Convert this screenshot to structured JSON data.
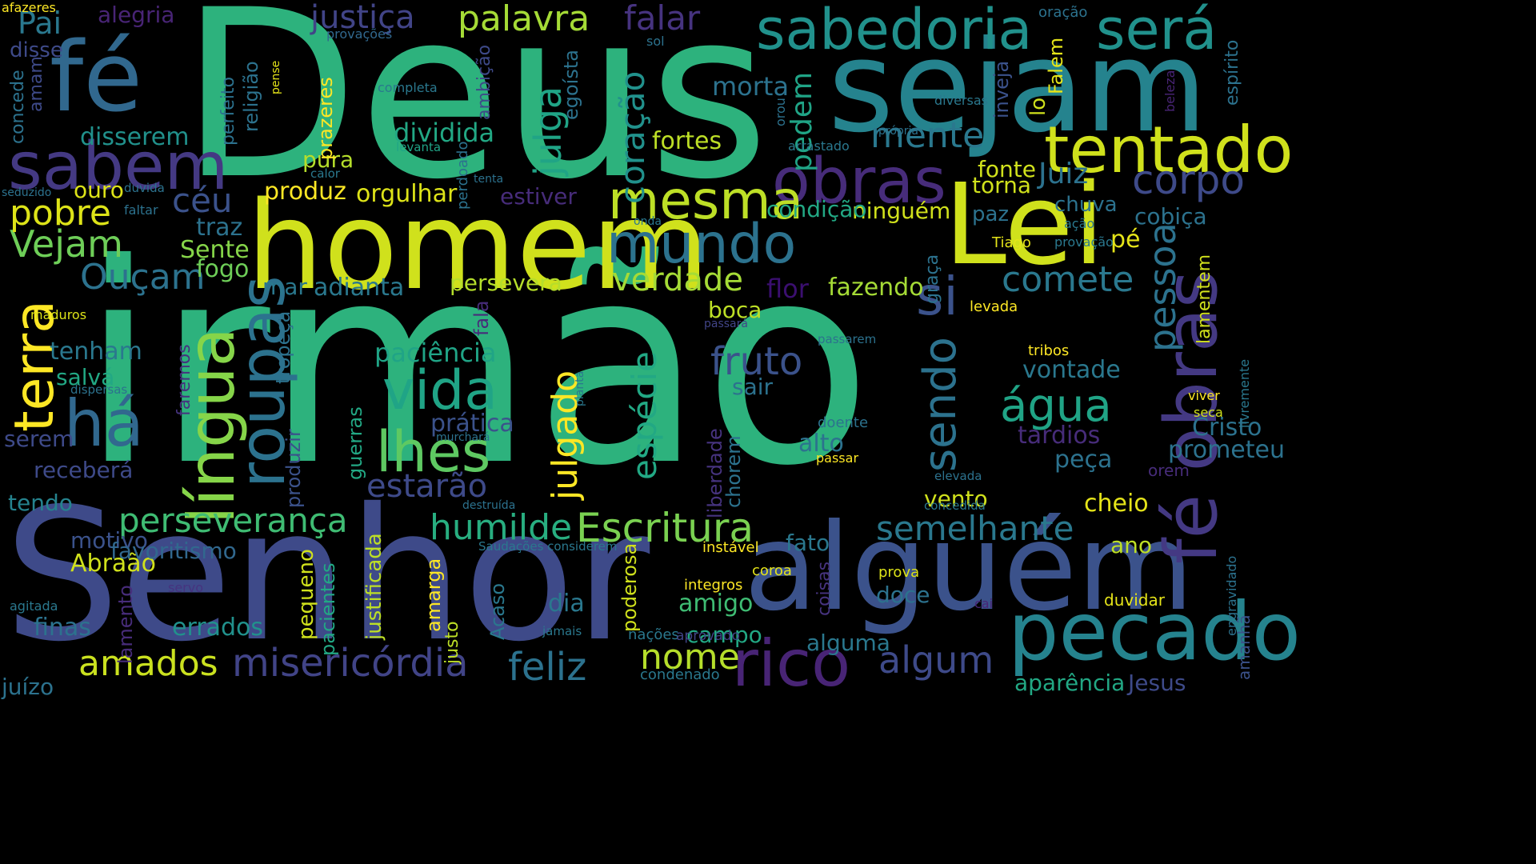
{
  "words": [
    {
      "text": "irmão",
      "color": "#2db27d"
    },
    {
      "text": "Deus",
      "color": "#2db27d"
    },
    {
      "text": "Senhor",
      "color": "#3e4a89"
    },
    {
      "text": "homem",
      "color": "#d0e11c"
    },
    {
      "text": "sejam",
      "color": "#25838e"
    },
    {
      "text": "alguém",
      "color": "#3b528b"
    },
    {
      "text": "fé",
      "color": "#31688e"
    },
    {
      "text": "Lei",
      "color": "#d0e11c"
    },
    {
      "text": "pecado",
      "color": "#25838e"
    },
    {
      "text": "obras",
      "color": "#472c7a"
    },
    {
      "text": "fé obras",
      "color": "#443983"
    },
    {
      "text": "sabedoria",
      "color": "#21918c"
    },
    {
      "text": "será",
      "color": "#21918c"
    },
    {
      "text": "tentado",
      "color": "#d0e11c"
    },
    {
      "text": "sabem",
      "color": "#443983"
    },
    {
      "text": "mesma",
      "color": "#bddf26"
    },
    {
      "text": "mundo",
      "color": "#2c728e"
    },
    {
      "text": "língua",
      "color": "#86d549"
    },
    {
      "text": "roupas",
      "color": "#2c728e"
    },
    {
      "text": "terra",
      "color": "#fde725"
    },
    {
      "text": "há",
      "color": "#31688e"
    },
    {
      "text": "vida",
      "color": "#20a486"
    },
    {
      "text": "lhes",
      "color": "#5ec962"
    },
    {
      "text": "rico",
      "color": "#482475"
    },
    {
      "text": "misericórdia",
      "color": "#414487"
    },
    {
      "text": "feliz",
      "color": "#2c728e"
    },
    {
      "text": "nome",
      "color": "#b5de2b"
    },
    {
      "text": "algum",
      "color": "#3e4a89"
    },
    {
      "text": "semelhante",
      "color": "#2a788e"
    },
    {
      "text": "humilde",
      "color": "#28ae80"
    },
    {
      "text": "Escritura",
      "color": "#7ad151"
    },
    {
      "text": "perseverança",
      "color": "#3fbc73"
    },
    {
      "text": "estarão",
      "color": "#3e4a89"
    },
    {
      "text": "fruto",
      "color": "#3b528b"
    },
    {
      "text": "água",
      "color": "#20a486"
    },
    {
      "text": "sendo",
      "color": "#2c728e"
    },
    {
      "text": "si",
      "color": "#3b528b"
    },
    {
      "text": "pessoa",
      "color": "#2c728e"
    },
    {
      "text": "comete",
      "color": "#2a788e"
    },
    {
      "text": "verdade",
      "color": "#a5db36"
    },
    {
      "text": "palavra",
      "color": "#a5db36"
    },
    {
      "text": "justiça",
      "color": "#414487"
    },
    {
      "text": "falar",
      "color": "#46337f"
    },
    {
      "text": "julga",
      "color": "#20a486"
    },
    {
      "text": "coração",
      "color": "#21918c"
    },
    {
      "text": "julgado",
      "color": "#fde725"
    },
    {
      "text": "espécie",
      "color": "#22a884"
    },
    {
      "text": "amados",
      "color": "#cae11f"
    },
    {
      "text": "mente",
      "color": "#2a788e"
    },
    {
      "text": "pedem",
      "color": "#20a486"
    },
    {
      "text": "Juiz",
      "color": "#2c728e"
    },
    {
      "text": "corpo",
      "color": "#3e4a89"
    },
    {
      "text": "Vejam",
      "color": "#6ece58"
    },
    {
      "text": "pobre",
      "color": "#dde318"
    },
    {
      "text": "céu",
      "color": "#3b528b"
    },
    {
      "text": "Ouçam",
      "color": "#2c728e"
    },
    {
      "text": "Pai",
      "color": "#2a788e"
    },
    {
      "text": "disse",
      "color": "#3e4a89"
    },
    {
      "text": "alegria",
      "color": "#482475"
    },
    {
      "text": "disserem",
      "color": "#21918c"
    },
    {
      "text": "fortes",
      "color": "#bddf26"
    },
    {
      "text": "produz",
      "color": "#fde725"
    },
    {
      "text": "orgulhar",
      "color": "#dde318"
    },
    {
      "text": "pura",
      "color": "#b5de2b"
    },
    {
      "text": "ouro",
      "color": "#dde318"
    },
    {
      "text": "dividida",
      "color": "#22a884"
    },
    {
      "text": "morta",
      "color": "#2c728e"
    },
    {
      "text": "paciência",
      "color": "#20a486"
    },
    {
      "text": "persevera",
      "color": "#b5de2b"
    },
    {
      "text": "adianta",
      "color": "#2a788e"
    },
    {
      "text": "mar",
      "color": "#2a788e"
    },
    {
      "text": "fogo",
      "color": "#6ece58"
    },
    {
      "text": "Sente",
      "color": "#86d549"
    },
    {
      "text": "traz",
      "color": "#2c728e"
    },
    {
      "text": "fonte",
      "color": "#d0e11c"
    },
    {
      "text": "torna",
      "color": "#d0e11c"
    },
    {
      "text": "ninguém",
      "color": "#d0e11c"
    },
    {
      "text": "condição",
      "color": "#22a884"
    },
    {
      "text": "paz",
      "color": "#2c728e"
    },
    {
      "text": "chuva",
      "color": "#2c728e"
    },
    {
      "text": "cobiça",
      "color": "#2c728e"
    },
    {
      "text": "pé",
      "color": "#e5e419"
    },
    {
      "text": "fazendo",
      "color": "#a5db36"
    },
    {
      "text": "flor",
      "color": "#3b0f70"
    },
    {
      "text": "boca",
      "color": "#bddf26"
    },
    {
      "text": "sair",
      "color": "#2c728e"
    },
    {
      "text": "tenham",
      "color": "#2a788e"
    },
    {
      "text": "salvá",
      "color": "#22a884"
    },
    {
      "text": "serem",
      "color": "#3e4a89"
    },
    {
      "text": "receberá",
      "color": "#3e4a89"
    },
    {
      "text": "tendo",
      "color": "#25838e"
    },
    {
      "text": "Abraão",
      "color": "#d0e11c"
    },
    {
      "text": "motivo",
      "color": "#3b528b"
    },
    {
      "text": "favoritismo",
      "color": "#31688e"
    },
    {
      "text": "finas",
      "color": "#2c728e"
    },
    {
      "text": "errados",
      "color": "#21918c"
    },
    {
      "text": "juízo",
      "color": "#2c728e"
    },
    {
      "text": "prática",
      "color": "#3b528b"
    },
    {
      "text": "dia",
      "color": "#2a788e"
    },
    {
      "text": "amigo",
      "color": "#3fbc73"
    },
    {
      "text": "campo",
      "color": "#22a884"
    },
    {
      "text": "alto",
      "color": "#2c728e"
    },
    {
      "text": "vento",
      "color": "#d0e11c"
    },
    {
      "text": "cheio",
      "color": "#e5e419"
    },
    {
      "text": "ano",
      "color": "#bddf26"
    },
    {
      "text": "fato",
      "color": "#2a788e"
    },
    {
      "text": "alguma",
      "color": "#2a788e"
    },
    {
      "text": "doce",
      "color": "#2c728e"
    },
    {
      "text": "Cristo",
      "color": "#2c728e"
    },
    {
      "text": "prometeu",
      "color": "#2c728e"
    },
    {
      "text": "tardios",
      "color": "#472c7a"
    },
    {
      "text": "peça",
      "color": "#2c728e"
    },
    {
      "text": "vontade",
      "color": "#2a788e"
    },
    {
      "text": "aparência",
      "color": "#22a884"
    },
    {
      "text": "Jesus",
      "color": "#3e4a89"
    },
    {
      "text": "estiver",
      "color": "#472c7a"
    },
    {
      "text": "levada",
      "color": "#fde725"
    },
    {
      "text": "Tiago",
      "color": "#e5e419"
    },
    {
      "text": "tribos",
      "color": "#fde725"
    },
    {
      "text": "duvidar",
      "color": "#e5e419"
    },
    {
      "text": "coroa",
      "color": "#e5e419"
    },
    {
      "text": "prova",
      "color": "#dde318"
    },
    {
      "text": "integros",
      "color": "#fde725"
    },
    {
      "text": "instável",
      "color": "#fde725"
    },
    {
      "text": "nações",
      "color": "#2a788e"
    },
    {
      "text": "aprovado",
      "color": "#414487"
    },
    {
      "text": "condenado",
      "color": "#2a788e"
    },
    {
      "text": "doente",
      "color": "#2c728e"
    },
    {
      "text": "passar",
      "color": "#fde725"
    },
    {
      "text": "elevada",
      "color": "#2c728e"
    },
    {
      "text": "concedida",
      "color": "#2a788e"
    },
    {
      "text": "destruída",
      "color": "#2c728e"
    },
    {
      "text": "orem",
      "color": "#472c7a"
    },
    {
      "text": "viver",
      "color": "#fde725"
    },
    {
      "text": "seca",
      "color": "#d0e11c"
    },
    {
      "text": "cai",
      "color": "#482475"
    },
    {
      "text": "ação",
      "color": "#2a788e"
    },
    {
      "text": "provação",
      "color": "#2a788e"
    },
    {
      "text": "diversas",
      "color": "#2a788e"
    },
    {
      "text": "própria",
      "color": "#2c728e"
    },
    {
      "text": "arrastado",
      "color": "#2a788e"
    },
    {
      "text": "onda",
      "color": "#2a788e"
    },
    {
      "text": "tenta",
      "color": "#2c728e"
    },
    {
      "text": "completa",
      "color": "#2a788e"
    },
    {
      "text": "levanta",
      "color": "#20a486"
    },
    {
      "text": "calor",
      "color": "#2a788e"
    },
    {
      "text": "faltar",
      "color": "#2c728e"
    },
    {
      "text": "duvida",
      "color": "#2c728e"
    },
    {
      "text": "seduzido",
      "color": "#2c728e"
    },
    {
      "text": "maduros",
      "color": "#dde318"
    },
    {
      "text": "dispersas",
      "color": "#2c728e"
    },
    {
      "text": "agitada",
      "color": "#2a788e"
    },
    {
      "text": "servo",
      "color": "#46337f"
    },
    {
      "text": "Saudações considerem",
      "color": "#2a788e"
    },
    {
      "text": "murchará",
      "color": "#2c728e"
    },
    {
      "text": "passará",
      "color": "#414487"
    },
    {
      "text": "passarem",
      "color": "#2c728e"
    },
    {
      "text": "jamais",
      "color": "#2a788e"
    },
    {
      "text": "provações",
      "color": "#31688e"
    },
    {
      "text": "sol",
      "color": "#2c728e"
    },
    {
      "text": "oração",
      "color": "#2c728e"
    },
    {
      "text": "afazeres",
      "color": "#fde725"
    },
    {
      "text": "amam",
      "color": "#3e4a89"
    },
    {
      "text": "concede",
      "color": "#2c728e"
    },
    {
      "text": "perfeito",
      "color": "#2c728e"
    },
    {
      "text": "religião",
      "color": "#2c728e"
    },
    {
      "text": "pense",
      "color": "#e5e419"
    },
    {
      "text": "prazeres",
      "color": "#fde725"
    },
    {
      "text": "ambição",
      "color": "#3e4a89"
    },
    {
      "text": "egoísta",
      "color": "#2c728e"
    },
    {
      "text": "perdoado",
      "color": "#2c728e"
    },
    {
      "text": "inveja",
      "color": "#3b528b"
    },
    {
      "text": "lo",
      "color": "#d0e11c"
    },
    {
      "text": "Falem",
      "color": "#e5e419"
    },
    {
      "text": "espírito",
      "color": "#2c728e"
    },
    {
      "text": "beleza",
      "color": "#482475"
    },
    {
      "text": "orou",
      "color": "#2c728e"
    },
    {
      "text": "graça",
      "color": "#2c728e"
    },
    {
      "text": "fala",
      "color": "#472c7a"
    },
    {
      "text": "tropeça",
      "color": "#2c728e"
    },
    {
      "text": "faremos",
      "color": "#46337f"
    },
    {
      "text": "produzir",
      "color": "#3b528b"
    },
    {
      "text": "guerras",
      "color": "#22a884"
    },
    {
      "text": "justificada",
      "color": "#bddf26"
    },
    {
      "text": "pequeno",
      "color": "#d0e11c"
    },
    {
      "text": "pacientes",
      "color": "#22a884"
    },
    {
      "text": "amarga",
      "color": "#fde725"
    },
    {
      "text": "justo",
      "color": "#bddf26"
    },
    {
      "text": "Acaso",
      "color": "#2a788e"
    },
    {
      "text": "lamento",
      "color": "#472c7a"
    },
    {
      "text": "poderosa",
      "color": "#d0e11c"
    },
    {
      "text": "liberdade",
      "color": "#46337f"
    },
    {
      "text": "chorem",
      "color": "#2c728e"
    },
    {
      "text": "coisas",
      "color": "#46337f"
    },
    {
      "text": "planta",
      "color": "#2a788e"
    },
    {
      "text": "lamentem",
      "color": "#d0e11c"
    },
    {
      "text": "livremente",
      "color": "#2a788e"
    },
    {
      "text": "engravidado",
      "color": "#2c728e"
    },
    {
      "text": "amanhã",
      "color": "#3b528b"
    }
  ]
}
